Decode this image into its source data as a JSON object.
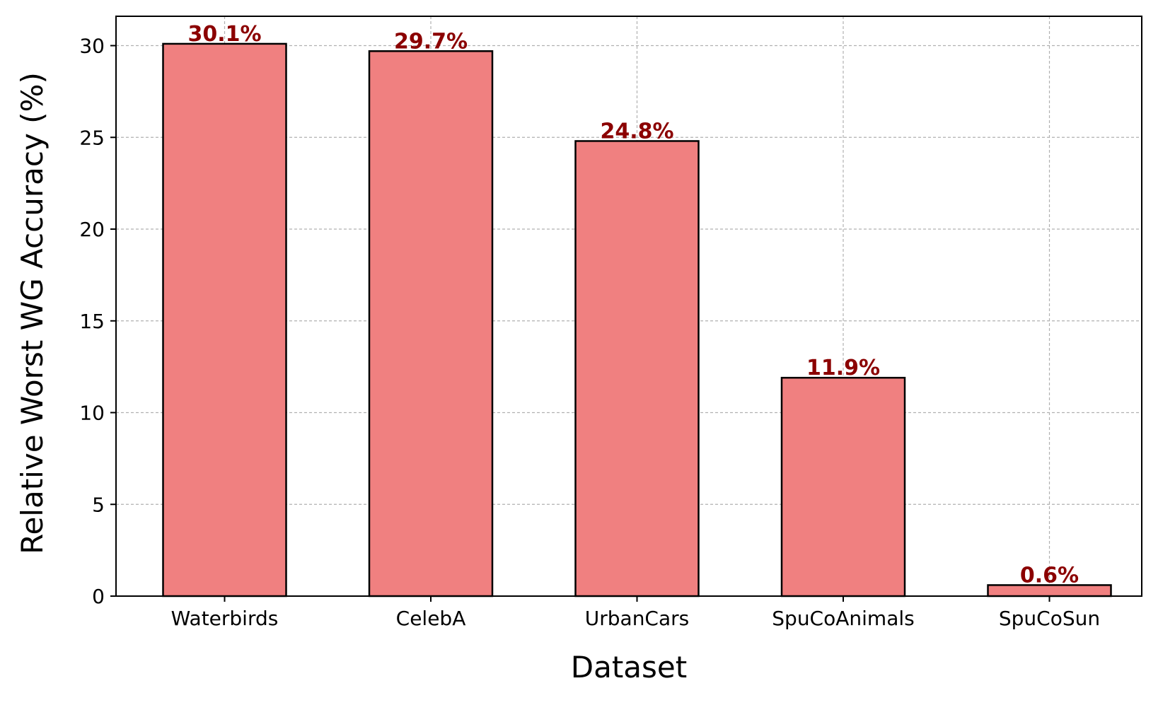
{
  "chart_data": {
    "type": "bar",
    "title": "",
    "xlabel": "Dataset",
    "ylabel": "Relative Worst WG Accuracy (%)",
    "categories": [
      "Waterbirds",
      "CelebA",
      "UrbanCars",
      "SpuCoAnimals",
      "SpuCoSun"
    ],
    "values": [
      30.1,
      29.7,
      24.8,
      11.9,
      0.6
    ],
    "value_labels": [
      "30.1%",
      "29.7%",
      "24.8%",
      "11.9%",
      "0.6%"
    ],
    "ylim": [
      0,
      31.6
    ],
    "yticks": [
      0,
      5,
      10,
      15,
      20,
      25,
      30
    ],
    "ytick_labels": [
      "0",
      "5",
      "10",
      "15",
      "20",
      "25",
      "30"
    ],
    "grid": true,
    "colors": {
      "bar_fill": "#f08080",
      "bar_edge": "#000000",
      "value_label": "#8b0000",
      "grid": "#b0b0b0"
    }
  }
}
